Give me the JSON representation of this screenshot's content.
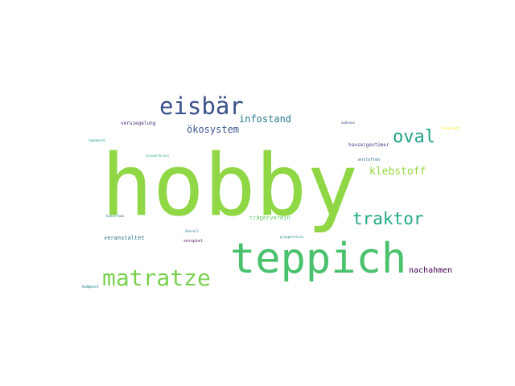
{
  "words": {
    "hobby": {
      "text": "hobby",
      "color": "#8fd744"
    },
    "teppich": {
      "text": "teppich",
      "color": "#4ac16d"
    },
    "eisbar": {
      "text": "eisbär",
      "color": "#3b528b"
    },
    "matratze": {
      "text": "matratze",
      "color": "#7ad151"
    },
    "oval": {
      "text": "oval",
      "color": "#20a386"
    },
    "traktor": {
      "text": "traktor",
      "color": "#22a884"
    },
    "klebstoff": {
      "text": "klebstoff",
      "color": "#95d840"
    },
    "infostand": {
      "text": "infostand",
      "color": "#2a788e"
    },
    "okosystem": {
      "text": "ökosystem",
      "color": "#3a548c"
    },
    "nachahmen": {
      "text": "nachahmen",
      "color": "#440154"
    },
    "tragerverein": {
      "text": "trägerverein",
      "color": "#5ec962"
    },
    "veranstaltet": {
      "text": "veranstaltet",
      "color": "#2c728e"
    },
    "versiegelung": {
      "text": "versiegelung",
      "color": "#482878"
    },
    "hauseigent": {
      "text": "hauseigentümer",
      "color": "#404688"
    },
    "entlueften": {
      "text": "entlüften",
      "color": "#31688e"
    },
    "vorspiel": {
      "text": "vorspiel",
      "color": "#440154"
    },
    "kompost": {
      "text": "kompost",
      "color": "#26828e"
    },
    "regenwurm": {
      "text": "regenwurm",
      "color": "#1f9e89"
    },
    "auswahlbraun": {
      "text": "auswahlbraun",
      "color": "#35b779"
    },
    "aussen": {
      "text": "außeneo",
      "color": "#3e4989"
    },
    "yellow": {
      "text": "lärmschutz",
      "color": "#fde725"
    },
    "gruppen": {
      "text": "gruppenreise",
      "color": "#21918c"
    },
    "kunst": {
      "text": "kunstraum",
      "color": "#2d708e"
    },
    "ueberall": {
      "text": "überall",
      "color": "#287c8e"
    }
  }
}
